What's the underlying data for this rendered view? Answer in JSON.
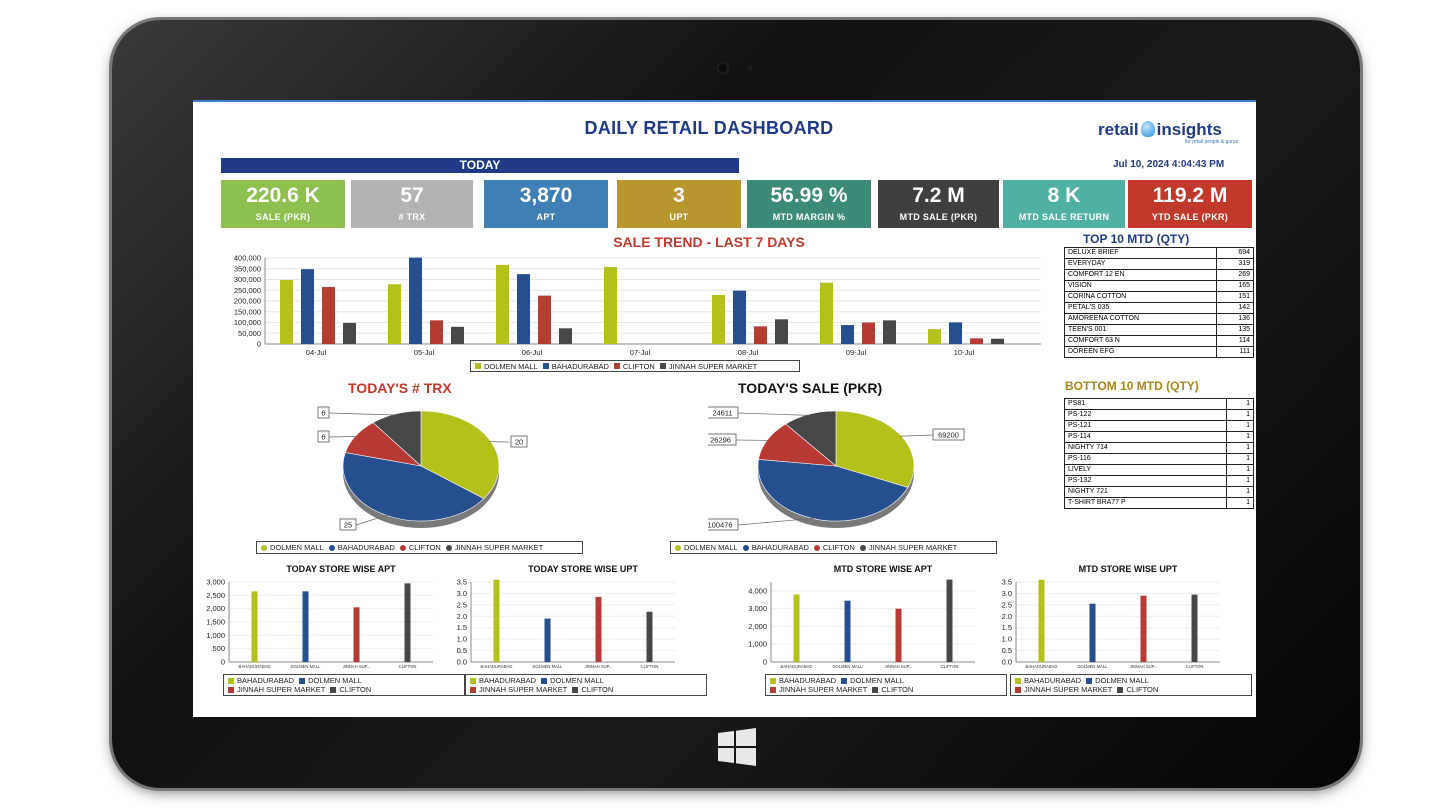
{
  "title": "DAILY RETAIL DASHBOARD",
  "logo": {
    "left": "retail",
    "right": "insights",
    "tagline": "for retail people & gurus"
  },
  "today_label": "TODAY",
  "datetime": "Jul 10, 2024 4:04:43 PM",
  "kpis": [
    {
      "value": "220.6 K",
      "label": "SALE (PKR)",
      "color": "#8dc04e"
    },
    {
      "value": "57",
      "label": "# TRX",
      "color": "#b3b3b3"
    },
    {
      "value": "3,870",
      "label": "APT",
      "color": "#3f7fb3"
    },
    {
      "value": "3",
      "label": "UPT",
      "color": "#b8962e"
    },
    {
      "value": "56.99 %",
      "label": "MTD MARGIN %",
      "color": "#3c8a78"
    },
    {
      "value": "7.2 M",
      "label": "MTD SALE (PKR)",
      "color": "#3f3f3f"
    },
    {
      "value": "8 K",
      "label": "MTD SALE RETURN",
      "color": "#4fb0a4"
    },
    {
      "value": "119.2 M",
      "label": "YTD SALE (PKR)",
      "color": "#c0392b"
    }
  ],
  "colors": {
    "dolmen": "#b5c11b",
    "bahadurabad": "#254f8e",
    "clifton": "#b83a35",
    "jinnah": "#474747"
  },
  "trend": {
    "title": "SALE TREND - LAST 7 DAYS",
    "legend": [
      "DOLMEN MALL",
      "BAHADURABAD",
      "CLIFTON",
      "JINNAH SUPER MARKET"
    ],
    "yticks": [
      "400,000",
      "350,000",
      "300,000",
      "250,000",
      "200,000",
      "150,000",
      "100,000",
      "50,000",
      "0"
    ]
  },
  "top10": {
    "title": "TOP 10 MTD (QTY)",
    "rows": [
      {
        "name": "DELUXE BRIEF",
        "qty": "694"
      },
      {
        "name": "EVERYDAY",
        "qty": "319"
      },
      {
        "name": "COMFORT 12 EN",
        "qty": "269"
      },
      {
        "name": "VISION",
        "qty": "165"
      },
      {
        "name": "CORINA COTTON",
        "qty": "151"
      },
      {
        "name": "PETAL'S 035",
        "qty": "142"
      },
      {
        "name": "AMOREENA COTTON",
        "qty": "136"
      },
      {
        "name": "TEEN'S 001",
        "qty": "135"
      },
      {
        "name": "COMFORT 63 N",
        "qty": "114"
      },
      {
        "name": "DOREEN EFG",
        "qty": "111"
      }
    ]
  },
  "bottom10": {
    "title": "BOTTOM 10 MTD (QTY)",
    "rows": [
      {
        "name": "PS81",
        "qty": "1"
      },
      {
        "name": "PS-122",
        "qty": "1"
      },
      {
        "name": "PS-121",
        "qty": "1"
      },
      {
        "name": "PS-114",
        "qty": "1"
      },
      {
        "name": "NIGHTY 714",
        "qty": "1"
      },
      {
        "name": "PS-116",
        "qty": "1"
      },
      {
        "name": "LIVELY",
        "qty": "1"
      },
      {
        "name": "PS-132",
        "qty": "1"
      },
      {
        "name": "NIGHTY 721",
        "qty": "1"
      },
      {
        "name": "T-SHIRT BRA77 P",
        "qty": "1"
      }
    ]
  },
  "pie_trx_title": "TODAY'S  # TRX",
  "pie_sale_title": "TODAY'S  SALE (PKR)",
  "pie_legend": [
    "DOLMEN MALL",
    "BAHADURABAD",
    "CLIFTON",
    "JINNAH SUPER MARKET"
  ],
  "mini_titles": [
    "TODAY STORE WISE APT",
    "TODAY STORE WISE UPT",
    "MTD STORE WISE  APT",
    "MTD STORE WISE UPT"
  ],
  "mini_legend": [
    "BAHADURABAD",
    "DOLMEN MALL",
    "JINNAH SUPER MARKET",
    "CLIFTON"
  ],
  "chart_data": [
    {
      "type": "bar",
      "title": "SALE TREND - LAST 7 DAYS",
      "categories": [
        "04-Jul",
        "05-Jul",
        "06-Jul",
        "07-Jul",
        "08-Jul",
        "09-Jul",
        "10-Jul"
      ],
      "series": [
        {
          "name": "DOLMEN MALL",
          "values": [
            298000,
            278000,
            368000,
            358000,
            228000,
            285000,
            69200
          ]
        },
        {
          "name": "BAHADURABAD",
          "values": [
            348000,
            402000,
            325000,
            0,
            248000,
            88000,
            100476
          ]
        },
        {
          "name": "CLIFTON",
          "values": [
            265000,
            110000,
            225000,
            0,
            82000,
            100000,
            26296
          ]
        },
        {
          "name": "JINNAH SUPER MARKET",
          "values": [
            98000,
            80000,
            73000,
            0,
            115000,
            110000,
            24611
          ]
        }
      ],
      "ylim": [
        0,
        400000
      ]
    },
    {
      "type": "pie",
      "title": "TODAY'S  # TRX",
      "labels": [
        "DOLMEN MALL",
        "BAHADURABAD",
        "CLIFTON",
        "JINNAH SUPER MARKET"
      ],
      "values": [
        20,
        25,
        6,
        6
      ],
      "value_labels": [
        "20",
        "25",
        "6",
        "6"
      ]
    },
    {
      "type": "pie",
      "title": "TODAY'S  SALE (PKR)",
      "labels": [
        "DOLMEN MALL",
        "BAHADURABAD",
        "CLIFTON",
        "JINNAH SUPER MARKET"
      ],
      "values": [
        69200,
        100476,
        26296,
        24611
      ],
      "value_labels": [
        "69200",
        "100476",
        "26296",
        "24611"
      ]
    },
    {
      "type": "bar",
      "title": "TODAY STORE WISE APT",
      "categories": [
        "BAHADURABAD",
        "DOLMEN MALL",
        "JINNAH SUP...",
        "CLIFTON"
      ],
      "values": [
        2650,
        2650,
        2050,
        2950
      ],
      "ylim": [
        0,
        3000
      ],
      "yticks": [
        "3,000",
        "2,500",
        "2,000",
        "1,500",
        "1,000",
        "500",
        "0"
      ]
    },
    {
      "type": "bar",
      "title": "TODAY STORE WISE UPT",
      "categories": [
        "BAHADURABAD",
        "DOLMEN MALL",
        "JINNAH SUP...",
        "CLIFTON"
      ],
      "values": [
        3.6,
        1.9,
        2.85,
        2.2
      ],
      "ylim": [
        0,
        3.5
      ],
      "yticks": [
        "3.5",
        "3.0",
        "2.5",
        "2.0",
        "1.5",
        "1.0",
        "0.5",
        "0.0"
      ]
    },
    {
      "type": "bar",
      "title": "MTD STORE WISE  APT",
      "categories": [
        "BAHADURABAD",
        "DOLMEN MALL",
        "JINNAH SUP...",
        "CLIFTON"
      ],
      "values": [
        3800,
        3450,
        3000,
        4650
      ],
      "ylim": [
        0,
        4500
      ],
      "yticks": [
        "4,000",
        "3,000",
        "2,000",
        "1,000",
        "0"
      ]
    },
    {
      "type": "bar",
      "title": "MTD STORE WISE UPT",
      "categories": [
        "BAHADURABAD",
        "DOLMEN MALL",
        "JINNAH SUP...",
        "CLIFTON"
      ],
      "values": [
        3.6,
        2.55,
        2.9,
        2.95
      ],
      "ylim": [
        0,
        3.5
      ],
      "yticks": [
        "3.5",
        "3.0",
        "2.5",
        "2.0",
        "1.5",
        "1.0",
        "0.5",
        "0.0"
      ]
    }
  ]
}
